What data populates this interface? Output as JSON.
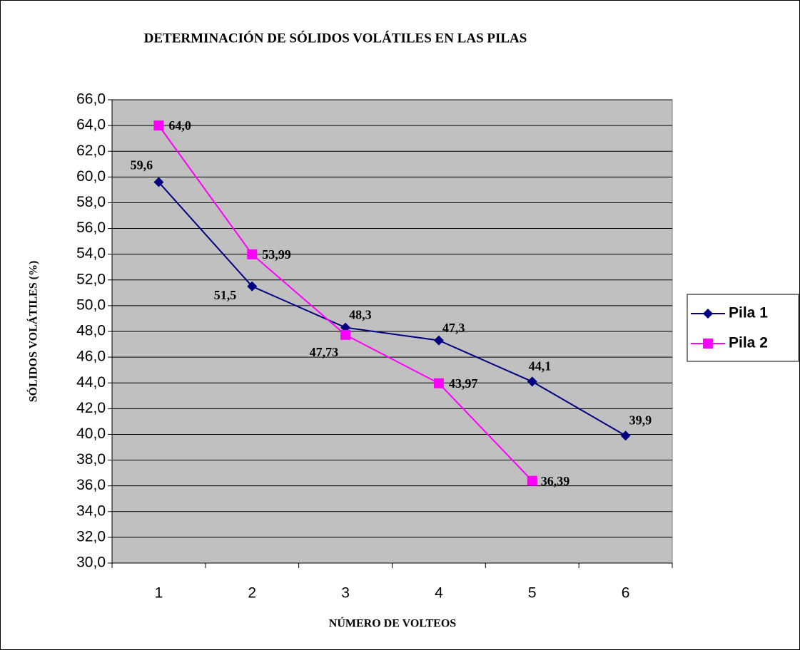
{
  "chart_data": {
    "type": "line",
    "title": "DETERMINACIÓN DE SÓLIDOS VOLÁTILES EN LAS PILAS",
    "x_label": "NÚMERO DE VOLTEOS",
    "y_label": "SÓLIDOS VOLÁTILES (%)",
    "categories": [
      "1",
      "2",
      "3",
      "4",
      "5",
      "6"
    ],
    "series": [
      {
        "name": "Pila 1",
        "color": "#000080",
        "marker": "diamond",
        "values": [
          59.6,
          51.5,
          48.3,
          47.3,
          44.1,
          39.9
        ],
        "value_labels": [
          "59,6",
          "51,5",
          "48,3",
          "47,3",
          "44,1",
          "39,9"
        ]
      },
      {
        "name": "Pila 2",
        "color": "#ff00ff",
        "marker": "square",
        "values": [
          64.0,
          53.99,
          47.73,
          43.97,
          36.39,
          null
        ],
        "value_labels": [
          "64,0",
          "53,99",
          "47,73",
          "43,97",
          "36,39",
          null
        ]
      }
    ],
    "ylim": [
      30,
      66
    ],
    "yticks": [
      {
        "value": 30,
        "label": "30,0"
      },
      {
        "value": 32,
        "label": "32,0"
      },
      {
        "value": 34,
        "label": "34,0"
      },
      {
        "value": 36,
        "label": "36,0"
      },
      {
        "value": 38,
        "label": "38,0"
      },
      {
        "value": 40,
        "label": "40,0"
      },
      {
        "value": 42,
        "label": "42,0"
      },
      {
        "value": 44,
        "label": "44,0"
      },
      {
        "value": 46,
        "label": "46,0"
      },
      {
        "value": 48,
        "label": "48,0"
      },
      {
        "value": 50,
        "label": "50,0"
      },
      {
        "value": 52,
        "label": "52,0"
      },
      {
        "value": 54,
        "label": "54,0"
      },
      {
        "value": 56,
        "label": "56,0"
      },
      {
        "value": 58,
        "label": "58,0"
      },
      {
        "value": 60,
        "label": "60,0"
      },
      {
        "value": 62,
        "label": "62,0"
      },
      {
        "value": 64,
        "label": "64,0"
      },
      {
        "value": 66,
        "label": "66,0"
      }
    ],
    "grid": true,
    "plot_background": "#c0c0c0",
    "legend_position": "right"
  }
}
